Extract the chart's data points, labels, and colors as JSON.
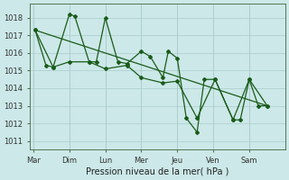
{
  "bg_color": "#cce8e8",
  "grid_color": "#aacccc",
  "line_color": "#1a5c1a",
  "xlabel": "Pression niveau de la mer( hPa )",
  "days": [
    "Mar",
    "Dim",
    "Lun",
    "Mer",
    "Jeu",
    "Ven",
    "Sam"
  ],
  "ylim": [
    1010.5,
    1018.8
  ],
  "yticks": [
    1011,
    1012,
    1013,
    1014,
    1015,
    1016,
    1017,
    1018
  ],
  "xlim": [
    -0.1,
    7.0
  ],
  "day_x": [
    0,
    1,
    2,
    3,
    4,
    5,
    6
  ],
  "series_jagged_x": [
    0.05,
    0.35,
    0.55,
    1.0,
    1.15,
    1.55,
    1.75,
    2.0,
    2.35,
    2.6,
    3.0,
    3.25,
    3.6,
    3.75,
    4.0,
    4.25,
    4.55,
    4.75,
    5.05,
    5.55,
    5.75,
    6.0,
    6.25,
    6.5
  ],
  "series_jagged_y": [
    1017.3,
    1015.3,
    1015.2,
    1018.2,
    1018.1,
    1015.5,
    1015.5,
    1018.0,
    1015.5,
    1015.4,
    1016.1,
    1015.8,
    1014.6,
    1016.1,
    1015.7,
    1012.3,
    1011.5,
    1014.5,
    1014.5,
    1012.2,
    1012.2,
    1014.5,
    1013.0,
    1013.0
  ],
  "series_smooth_x": [
    0.05,
    0.55,
    1.0,
    1.55,
    2.0,
    2.6,
    3.0,
    3.6,
    4.0,
    4.55,
    5.05,
    5.55,
    6.0,
    6.5
  ],
  "series_smooth_y": [
    1017.3,
    1015.2,
    1015.5,
    1015.5,
    1015.1,
    1015.3,
    1014.6,
    1014.3,
    1014.4,
    1012.3,
    1014.5,
    1012.2,
    1014.5,
    1013.0
  ],
  "trend_x": [
    0.05,
    6.5
  ],
  "trend_y": [
    1017.3,
    1013.0
  ]
}
